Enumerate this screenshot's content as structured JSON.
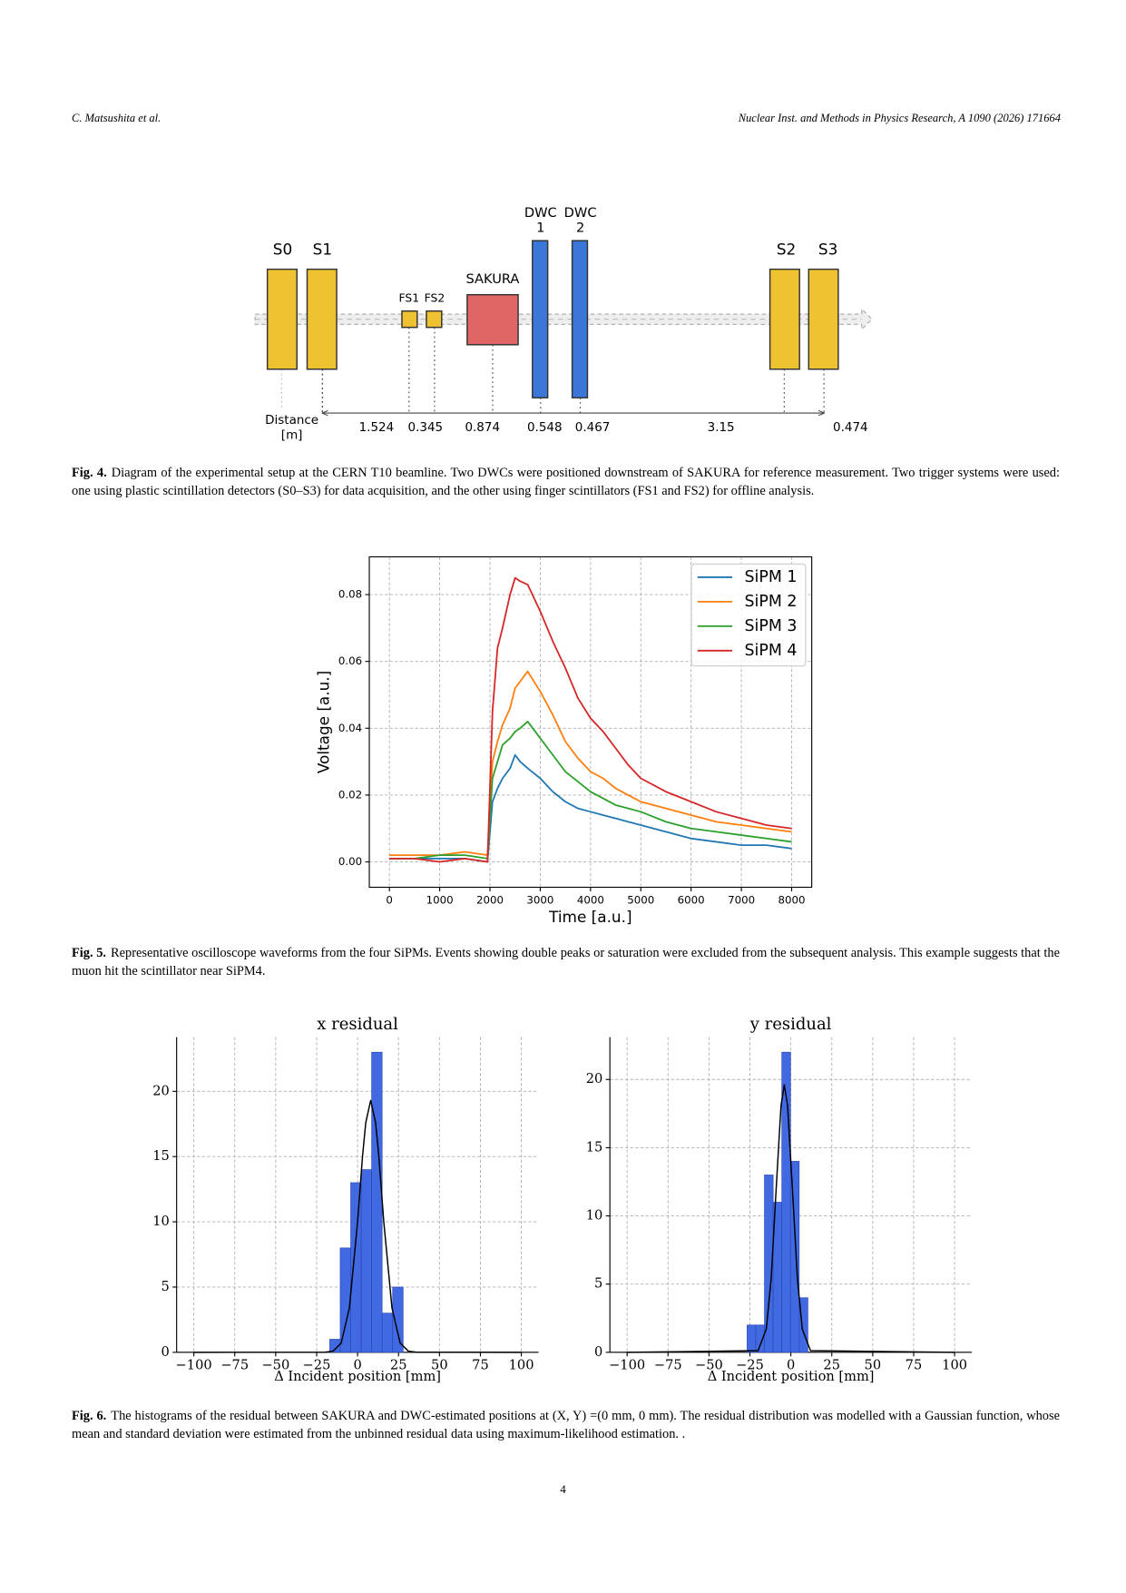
{
  "header": {
    "authors": "C. Matsushita et al.",
    "journal": "Nuclear Inst. and Methods in Physics Research, A 1090 (2026) 171664"
  },
  "diagram": {
    "nodes": [
      {
        "label": "S0"
      },
      {
        "label": "S1"
      },
      {
        "label": "FS1"
      },
      {
        "label": "FS2"
      },
      {
        "label": "SAKURA"
      },
      {
        "label": [
          "DWC",
          "1"
        ]
      },
      {
        "label": [
          "DWC",
          "2"
        ]
      },
      {
        "label": "S2"
      },
      {
        "label": "S3"
      }
    ],
    "axis_label": [
      "Distance",
      "[m]"
    ],
    "distances": [
      "1.524",
      "0.345",
      "0.874",
      "0.548",
      "0.467",
      "3.15",
      "0.474"
    ]
  },
  "captions": [
    {
      "label": "Fig. 4.",
      "text": "Diagram of the experimental setup at the CERN T10 beamline. Two DWCs were positioned downstream of SAKURA for reference measurement. Two trigger systems were used: one using plastic scintillation detectors (S0–S3) for data acquisition, and the other using finger scintillators (FS1 and FS2) for offline analysis."
    },
    {
      "label": "Fig. 5.",
      "text": "Representative oscilloscope waveforms from the four SiPMs. Events showing double peaks or saturation were excluded from the subsequent analysis. This example suggests that the muon hit the scintillator near SiPM4."
    },
    {
      "label": "Fig. 6.",
      "text": "The histograms of the residual between SAKURA and DWC-estimated positions at (X, Y) =(0 mm, 0 mm).  The residual distribution was modelled with a Gaussian function, whose mean and standard deviation were estimated from the unbinned residual data using maximum-likelihood estimation. ."
    }
  ],
  "chart_data": [
    {
      "type": "line",
      "xlabel": "Time [a.u.]",
      "ylabel": "Voltage [a.u.]",
      "x": [
        0,
        500,
        1000,
        1500,
        1950,
        2050,
        2150,
        2250,
        2400,
        2500,
        2600,
        2750,
        3000,
        3250,
        3500,
        3750,
        4000,
        4250,
        4500,
        4750,
        5000,
        5500,
        6000,
        6500,
        7000,
        7500,
        8000
      ],
      "series": [
        {
          "name": "SiPM 1",
          "color": "#1f77b4",
          "values": [
            0.001,
            0.001,
            0.001,
            0.001,
            0.0,
            0.018,
            0.022,
            0.025,
            0.028,
            0.032,
            0.03,
            0.028,
            0.025,
            0.021,
            0.018,
            0.016,
            0.015,
            0.014,
            0.013,
            0.012,
            0.011,
            0.009,
            0.007,
            0.006,
            0.005,
            0.005,
            0.004
          ]
        },
        {
          "name": "SiPM 2",
          "color": "#ff7f0e",
          "values": [
            0.002,
            0.002,
            0.002,
            0.003,
            0.002,
            0.03,
            0.036,
            0.041,
            0.046,
            0.052,
            0.054,
            0.057,
            0.051,
            0.044,
            0.036,
            0.031,
            0.027,
            0.025,
            0.022,
            0.02,
            0.018,
            0.016,
            0.014,
            0.012,
            0.011,
            0.01,
            0.009
          ]
        },
        {
          "name": "SiPM 3",
          "color": "#2ca02c",
          "values": [
            0.001,
            0.001,
            0.002,
            0.002,
            0.001,
            0.025,
            0.03,
            0.035,
            0.037,
            0.039,
            0.04,
            0.042,
            0.037,
            0.032,
            0.027,
            0.024,
            0.021,
            0.019,
            0.017,
            0.016,
            0.015,
            0.012,
            0.01,
            0.009,
            0.008,
            0.007,
            0.006
          ]
        },
        {
          "name": "SiPM 4",
          "color": "#d62728",
          "values": [
            0.001,
            0.001,
            0.0,
            0.001,
            0.0,
            0.045,
            0.064,
            0.07,
            0.08,
            0.085,
            0.084,
            0.083,
            0.075,
            0.066,
            0.058,
            0.049,
            0.043,
            0.039,
            0.034,
            0.029,
            0.025,
            0.021,
            0.018,
            0.015,
            0.013,
            0.011,
            0.01
          ]
        }
      ],
      "xlim": [
        -400,
        8400
      ],
      "ylim": [
        -0.0076,
        0.0913
      ],
      "xticks": [
        0,
        1000,
        2000,
        3000,
        4000,
        5000,
        6000,
        7000,
        8000
      ],
      "yticks": [
        {
          "value": 0,
          "label": "0.00"
        },
        0.02,
        0.04,
        0.06,
        0.08
      ],
      "grid": true,
      "legend": "upper right"
    },
    {
      "type": "histogram",
      "title": "x residual",
      "xlabel": "Δ Incident position [mm]",
      "color": "#4169e1",
      "bins": [
        -17,
        -10.6,
        -4.2,
        2.2,
        8.6,
        15,
        21.4,
        27.8
      ],
      "counts": [
        1,
        8,
        13,
        14,
        23,
        3,
        5
      ],
      "fit": {
        "color": "#000000",
        "x": [
          -100,
          -20,
          -15,
          -10,
          -5,
          0,
          3,
          5,
          8,
          11,
          13,
          16,
          21,
          26,
          31,
          36,
          100
        ],
        "values": [
          0,
          0.01,
          0.09,
          0.71,
          3.4,
          10.0,
          15.0,
          17.6,
          19.3,
          17.6,
          15.0,
          10.0,
          3.4,
          0.71,
          0.09,
          0.01,
          0
        ]
      },
      "xlim": [
        -110.5,
        110.5
      ],
      "ylim": [
        0,
        24.15
      ],
      "xticks": [
        {
          "value": -100,
          "label": "−100"
        },
        {
          "value": -75,
          "label": "−75"
        },
        {
          "value": -50,
          "label": "−50"
        },
        {
          "value": -25,
          "label": "−25"
        },
        0,
        25,
        50,
        75,
        100
      ],
      "yticks": [
        0,
        5,
        10,
        15,
        20
      ],
      "grid": true
    },
    {
      "type": "histogram",
      "title": "y residual",
      "xlabel": "Δ Incident position [mm]",
      "color": "#4169e1",
      "bins": [
        -26.7,
        -21.4,
        -16.1,
        -10.8,
        -5.5,
        -0.2,
        5.1,
        10.4
      ],
      "counts": [
        2,
        2,
        13,
        11,
        22,
        14,
        4
      ],
      "fit": {
        "color": "#000000",
        "x": [
          -100,
          -20,
          -15,
          -12,
          -9,
          -6,
          -4,
          -2,
          1,
          4,
          7,
          12,
          100
        ],
        "values": [
          0,
          0.12,
          1.7,
          5.4,
          11.9,
          18.1,
          19.6,
          18.1,
          11.9,
          5.4,
          1.7,
          0.12,
          0
        ]
      },
      "xlim": [
        -110.5,
        110.5
      ],
      "ylim": [
        0,
        23.1
      ],
      "xticks": [
        {
          "value": -100,
          "label": "−100"
        },
        {
          "value": -75,
          "label": "−75"
        },
        {
          "value": -50,
          "label": "−50"
        },
        {
          "value": -25,
          "label": "−25"
        },
        0,
        25,
        50,
        75,
        100
      ],
      "yticks": [
        0,
        5,
        10,
        15,
        20
      ],
      "grid": true
    }
  ],
  "page_number": "4"
}
